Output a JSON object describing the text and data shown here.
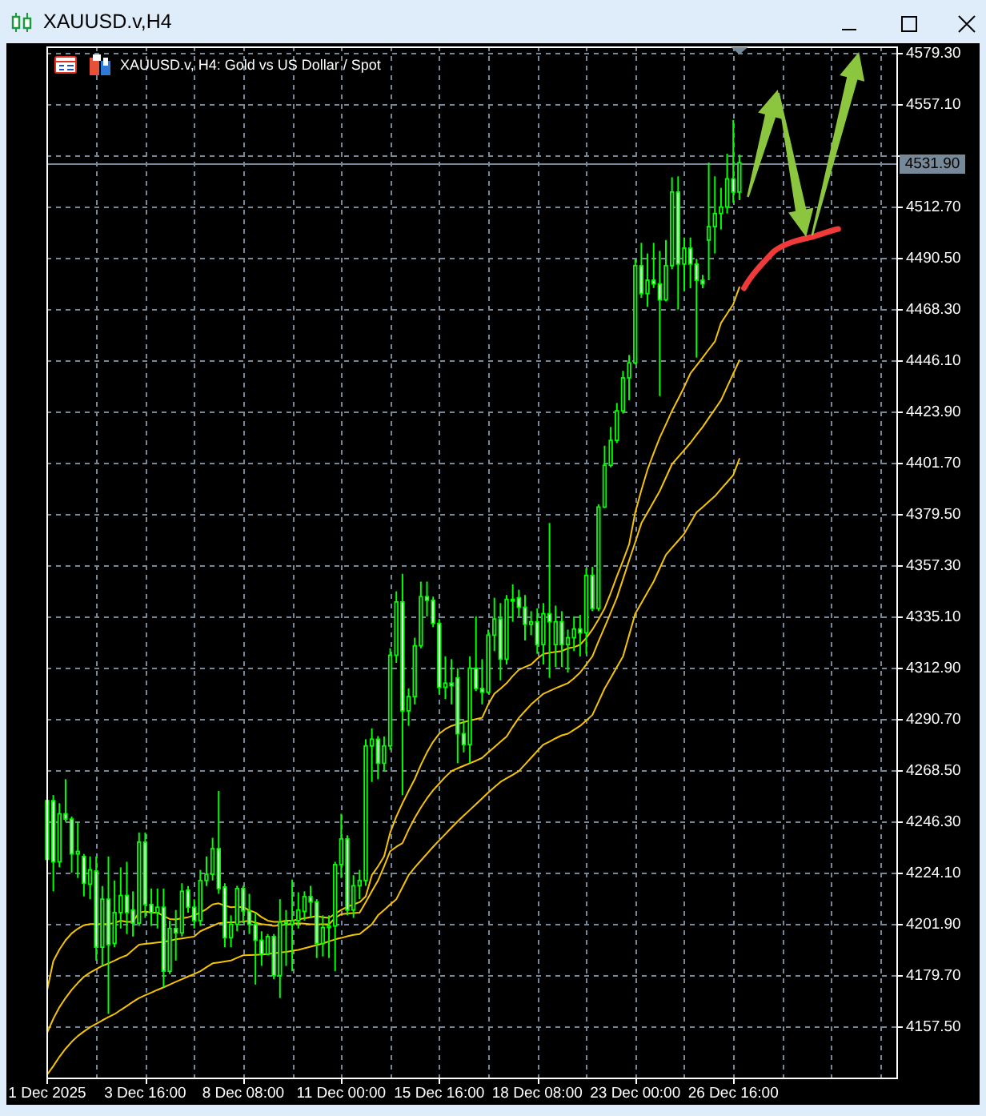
{
  "chart_data": {
    "type": "candlestick",
    "title": "XAUUSD.v,H4",
    "subtitle": "XAUUSD.v, H4: Gold vs US Dollar / Spot",
    "color": "#00ff00",
    "categories": [
      "1 Dec 2025",
      null,
      null,
      null,
      null,
      null,
      null,
      null,
      null,
      null,
      null,
      null,
      null,
      null,
      null,
      null,
      "3 Dec 16:00",
      null,
      null,
      null,
      null,
      null,
      null,
      null,
      null,
      null,
      null,
      null,
      null,
      null,
      null,
      null,
      "8 Dec 08:00",
      null,
      null,
      null,
      null,
      null,
      null,
      null,
      null,
      null,
      null,
      null,
      null,
      null,
      null,
      null,
      "11 Dec 00:00",
      null,
      null,
      null,
      null,
      null,
      null,
      null,
      null,
      null,
      null,
      null,
      null,
      null,
      null,
      null,
      "15 Dec 16:00",
      null,
      null,
      null,
      null,
      null,
      null,
      null,
      null,
      null,
      null,
      null,
      null,
      null,
      null,
      null,
      "18 Dec 08:00",
      null,
      null,
      null,
      null,
      null,
      null,
      null,
      null,
      null,
      null,
      null,
      null,
      null,
      null,
      null,
      "23 Dec 00:00",
      null,
      null,
      null,
      null,
      null,
      null,
      null,
      null,
      null,
      null,
      null,
      null,
      null,
      null,
      null,
      "26 Dec 16:00",
      null,
      null,
      null,
      null,
      null,
      null,
      null,
      null,
      null,
      null,
      null,
      null,
      null,
      null,
      null,
      null,
      null,
      null,
      null,
      null,
      null,
      null,
      null,
      null,
      null,
      null
    ],
    "ohlc": [
      [
        4230.1,
        4257.9,
        4227.8,
        4255.5
      ],
      [
        4255.5,
        4257.9,
        4216.2,
        4229
      ],
      [
        4229,
        4254.4,
        4226.6,
        4249.8
      ],
      [
        4249.8,
        4264.8,
        4246.3,
        4247.5
      ],
      [
        4247.5,
        4248.6,
        4224.3,
        4232.4
      ],
      [
        4232.4,
        4246.3,
        4222,
        4233.5
      ],
      [
        4231.3,
        4232.4,
        4214,
        4219.7
      ],
      [
        4219.3,
        4231.3,
        4212.8,
        4225.5
      ],
      [
        4225,
        4231.3,
        4186.2,
        4192
      ],
      [
        4192,
        4218.5,
        4183.9,
        4212.8
      ],
      [
        4212.8,
        4231.3,
        4163.1,
        4193.1
      ],
      [
        4193.6,
        4220.9,
        4192,
        4207
      ],
      [
        4207,
        4226.6,
        4200.1,
        4214.4
      ],
      [
        4214.4,
        4229,
        4197.7,
        4207
      ],
      [
        4208.1,
        4216.2,
        4196.6,
        4202.4
      ],
      [
        4202.4,
        4241.7,
        4201.2,
        4237.5
      ],
      [
        4237.5,
        4241.7,
        4204.7,
        4210.5
      ],
      [
        4210.5,
        4217.4,
        4201.2,
        4207
      ],
      [
        4207,
        4217.4,
        4200.1,
        4209.3
      ],
      [
        4209.3,
        4217.4,
        4174.6,
        4181.6
      ],
      [
        4181.6,
        4203.5,
        4180.4,
        4200.1
      ],
      [
        4200.1,
        4208.1,
        4186.2,
        4198.2
      ],
      [
        4198.2,
        4219.7,
        4196.6,
        4216.2
      ],
      [
        4216.7,
        4218.5,
        4207,
        4209.3
      ],
      [
        4209.3,
        4212.8,
        4200.1,
        4203.5
      ],
      [
        4203.5,
        4225.5,
        4201.2,
        4220.9
      ],
      [
        4220.9,
        4231.3,
        4218.5,
        4223.6
      ],
      [
        4223.6,
        4239.4,
        4220.9,
        4234.7
      ],
      [
        4234.7,
        4259.7,
        4215.1,
        4217.4
      ],
      [
        4218.1,
        4219.7,
        4192,
        4196.1
      ],
      [
        4196.1,
        4205.8,
        4192,
        4201.9
      ],
      [
        4201.9,
        4218.6,
        4198.9,
        4217.4
      ],
      [
        4217.4,
        4218.6,
        4202.4,
        4207.7
      ],
      [
        4207.7,
        4215.1,
        4197.7,
        4201.9
      ],
      [
        4201.9,
        4207,
        4175.8,
        4195
      ],
      [
        4195,
        4198.9,
        4183.9,
        4189
      ],
      [
        4189,
        4197.7,
        4188.5,
        4196.6
      ],
      [
        4196.6,
        4197.7,
        4178.1,
        4179.7
      ],
      [
        4179.7,
        4212.8,
        4170,
        4202.8
      ],
      [
        4202.8,
        4208.1,
        4183.9,
        4201.9
      ],
      [
        4201.9,
        4221.3,
        4181.6,
        4203.5
      ],
      [
        4203.5,
        4215.8,
        4200.1,
        4208.1
      ],
      [
        4207.5,
        4216.2,
        4203.5,
        4213.9
      ],
      [
        4213.9,
        4218.6,
        4204.7,
        4211.6
      ],
      [
        4211.6,
        4212.8,
        4187.3,
        4193.6
      ],
      [
        4193.6,
        4205.8,
        4188,
        4200.5
      ],
      [
        4200.5,
        4205.8,
        4187.3,
        4201.2
      ],
      [
        4201.2,
        4229,
        4181.6,
        4227.8
      ],
      [
        4227.8,
        4249.8,
        4222,
        4238.9
      ],
      [
        4238.9,
        4240.5,
        4205.8,
        4208.1
      ],
      [
        4208.1,
        4223.2,
        4204.7,
        4218.6
      ],
      [
        4218.6,
        4225.5,
        4212.8,
        4220.9
      ],
      [
        4220.9,
        4282.1,
        4218.6,
        4279.2
      ],
      [
        4279.2,
        4286.8,
        4263.6,
        4282.1
      ],
      [
        4282.1,
        4283.5,
        4264.8,
        4271.7
      ],
      [
        4271.7,
        4283.3,
        4268.3,
        4279.2
      ],
      [
        4279.2,
        4321.5,
        4277.5,
        4318.5
      ],
      [
        4318.5,
        4346.2,
        4315.2,
        4341.6
      ],
      [
        4341.6,
        4353.8,
        4257.9,
        4294.4
      ],
      [
        4294.4,
        4304.1,
        4287.9,
        4300.6
      ],
      [
        4300.6,
        4326.1,
        4297.2,
        4322.6
      ],
      [
        4322.6,
        4350.4,
        4321.5,
        4343.9
      ],
      [
        4343.9,
        4350.4,
        4335.3,
        4342.3
      ],
      [
        4342.3,
        4343.9,
        4330.7,
        4332.3
      ],
      [
        4332.3,
        4334.2,
        4301.8,
        4304.6
      ],
      [
        4304.6,
        4318,
        4299.5,
        4306.4
      ],
      [
        4306.4,
        4316.8,
        4297.2,
        4305.3
      ],
      [
        4308.7,
        4312.9,
        4271.7,
        4284.5
      ],
      [
        4284.5,
        4290.2,
        4276.4,
        4279.8
      ],
      [
        4279.8,
        4318,
        4271.7,
        4312.9
      ],
      [
        4312.9,
        4335.3,
        4303,
        4304.1
      ],
      [
        4304.1,
        4316.8,
        4297.2,
        4302.5
      ],
      [
        4302.5,
        4329.6,
        4301.8,
        4327.2
      ],
      [
        4327.2,
        4343.4,
        4320.3,
        4334.2
      ],
      [
        4334.2,
        4341.1,
        4307.6,
        4316.8
      ],
      [
        4316.8,
        4344.6,
        4314.5,
        4342.7
      ],
      [
        4342.7,
        4349.2,
        4333,
        4342
      ],
      [
        4343.4,
        4346.9,
        4335.3,
        4339.3
      ],
      [
        4339.3,
        4344.6,
        4324.9,
        4331.9
      ],
      [
        4331.9,
        4337.6,
        4327.2,
        4333
      ],
      [
        4333,
        4338.8,
        4319.1,
        4323.1
      ],
      [
        4323.1,
        4341.1,
        4314.5,
        4336.5
      ],
      [
        4336.5,
        4375.8,
        4308.7,
        4333
      ],
      [
        4323.1,
        4340,
        4313.4,
        4333
      ],
      [
        4333,
        4337.6,
        4313.4,
        4323.1
      ],
      [
        4323.1,
        4329.6,
        4311,
        4326.1
      ],
      [
        4326.1,
        4335.3,
        4320.3,
        4329.9
      ],
      [
        4329.9,
        4336,
        4318,
        4328.2
      ],
      [
        4328.2,
        4356.1,
        4319.1,
        4353.1
      ],
      [
        4353.1,
        4356.8,
        4337.6,
        4338.8
      ],
      [
        4338.8,
        4383.9,
        4337.6,
        4382.7
      ],
      [
        4382.7,
        4409.3,
        4382.3,
        4400.8
      ],
      [
        4400.8,
        4417.4,
        4399.9,
        4411.6
      ],
      [
        4411.6,
        4427.8,
        4410.5,
        4424.4
      ],
      [
        4424.4,
        4441.7,
        4423.2,
        4438.7
      ],
      [
        4438.7,
        4448.6,
        4429,
        4445.2
      ],
      [
        4445.2,
        4490.3,
        4444.5,
        4487.3
      ],
      [
        4487.3,
        4497.2,
        4473.4,
        4475.2
      ],
      [
        4475.2,
        4492.6,
        4469.5,
        4481
      ],
      [
        4481,
        4497.2,
        4477.6,
        4479.4
      ],
      [
        4479.4,
        4493.7,
        4430.8,
        4472.5
      ],
      [
        4472.5,
        4498.4,
        4471.8,
        4487.3
      ],
      [
        4487.3,
        4525.6,
        4485.7,
        4519.2
      ],
      [
        4519.2,
        4526,
        4468.3,
        4488
      ],
      [
        4488,
        4499.5,
        4476.4,
        4494.9
      ],
      [
        4494.9,
        4499.5,
        4477.5,
        4488
      ],
      [
        4488,
        4490.3,
        4447.5,
        4481
      ],
      [
        4481,
        4483.3,
        4477.5,
        4479.4
      ],
      [
        4498.4,
        4532,
        4481,
        4504.2
      ],
      [
        4504.2,
        4526,
        4492.6,
        4509.9
      ],
      [
        4509.9,
        4521,
        4503,
        4512.7
      ],
      [
        4512.7,
        4535.8,
        4509.9,
        4524.9
      ],
      [
        4524.9,
        4550.4,
        4514.5,
        4519.2
      ],
      [
        4519.2,
        4535.4,
        4515.7,
        4531.9
      ],
      null,
      null,
      null,
      null,
      null,
      null,
      null,
      null,
      null,
      null,
      null,
      null,
      null,
      null,
      null,
      null,
      null,
      null,
      null,
      null,
      null,
      null,
      null,
      null,
      null
    ],
    "series": [
      {
        "type": "line",
        "color": "#f5c400",
        "values": [
          4173.5,
          4186,
          4191,
          4195,
          4198,
          4200,
          4201.5,
          4202,
          4202,
          4202,
          4202,
          4202.5,
          4203.5,
          4203,
          4203,
          4207,
          4207.5,
          4207,
          4207,
          4205.5,
          4204.2,
          4204,
          4204.5,
          4205,
          4205.8,
          4207,
          4208.5,
          4210.5,
          4211,
          4210,
          4209.3,
          4209.5,
          4209.3,
          4208,
          4207,
          4205,
          4203.5,
          4203,
          4203,
          4203.5,
          4203.5,
          4204,
          4204.5,
          4205,
          4205.5,
          4205,
          4204.7,
          4206.5,
          4208.1,
          4209.5,
          4210.5,
          4211.5,
          4214,
          4223.2,
          4227,
          4231.3,
          4241.7,
          4248.6,
          4254.4,
          4259.7,
          4264.8,
          4271,
          4276.4,
          4281,
          4284.5,
          4286.5,
          4287.9,
          4288.7,
          4289.5,
          4290.2,
          4290.8,
          4291.4,
          4297.2,
          4301.8,
          4304,
          4306.4,
          4309.5,
          4312.2,
          4313.4,
          4314.5,
          4317,
          4319.1,
          4319.5,
          4320,
          4320.3,
          4321.5,
          4322,
          4323.1,
          4326,
          4329.6,
          4334,
          4338.8,
          4345.5,
          4352.7,
          4359.5,
          4366.6,
          4380.4,
          4390,
          4398.9,
          4406,
          4412.8,
          4418.5,
          4424.4,
          4429.5,
          4434.8,
          4440.6,
          4444,
          4447.5,
          4451,
          4454.4,
          4462.5,
          4466.5,
          4470.6,
          4478,
          null,
          null,
          null,
          null,
          null,
          null,
          null,
          null,
          null,
          null,
          null,
          null,
          null,
          null,
          null,
          null,
          null,
          null,
          null,
          null,
          null,
          null,
          null,
          null,
          null
        ]
      },
      {
        "type": "line",
        "color": "#f5c400",
        "values": [
          4155,
          4161,
          4166,
          4170,
          4173.5,
          4176.5,
          4179.2,
          4181,
          4182.5,
          4183.9,
          4185,
          4186.2,
          4187.5,
          4188.5,
          4190.8,
          4193.1,
          4193.4,
          4193.7,
          4194,
          4194.3,
          4194.8,
          4195.4,
          4195.8,
          4196.2,
          4196.6,
          4198.9,
          4200.1,
          4201.2,
          4202.4,
          4202.6,
          4202.8,
          4202.8,
          4203.1,
          4203.5,
          4202.6,
          4202,
          4201.7,
          4201.2,
          4201.5,
          4201.8,
          4202.2,
          4202.4,
          4202.2,
          4201.9,
          4201.9,
          4201.9,
          4201.9,
          4204.7,
          4206.3,
          4206.6,
          4206.8,
          4207,
          4211.5,
          4216.2,
          4220.8,
          4227,
          4233.6,
          4235.5,
          4237.1,
          4242.9,
          4248,
          4252.5,
          4256.5,
          4260,
          4262.9,
          4265.8,
          4268.3,
          4269.5,
          4270.6,
          4271.7,
          4272.8,
          4274,
          4276.4,
          4278.7,
          4281,
          4283.3,
          4287.5,
          4291.4,
          4294.3,
          4297.2,
          4299.5,
          4301.8,
          4303,
          4304.2,
          4305.3,
          4306.4,
          4308.5,
          4311,
          4314.5,
          4318,
          4324.5,
          4330.7,
          4337,
          4343.4,
          4351.5,
          4359.6,
          4367.5,
          4375.7,
          4380.3,
          4385,
          4389.7,
          4395.5,
          4401.3,
          4404.4,
          4407.4,
          4410.5,
          4414,
          4417.4,
          4421.3,
          4425.1,
          4429,
          4434.8,
          4440.5,
          4446.3,
          null,
          null,
          null,
          null,
          null,
          null,
          null,
          null,
          null,
          null,
          null,
          null,
          null,
          null,
          null,
          null,
          null,
          null,
          null,
          null,
          null,
          null,
          null,
          null,
          null
        ]
      },
      {
        "type": "line",
        "color": "#f5c400",
        "values": [
          4136.8,
          4140.5,
          4144.5,
          4148,
          4151,
          4153.5,
          4155.5,
          4157.3,
          4158.8,
          4160.3,
          4161.7,
          4163,
          4164.8,
          4166.5,
          4168.3,
          4170,
          4171.2,
          4172.3,
          4173.5,
          4174.6,
          4175.8,
          4177,
          4178.1,
          4179.3,
          4180.4,
          4181.6,
          4183.3,
          4185,
          4185.4,
          4185.8,
          4186.2,
          4187.4,
          4188.5,
          4188.6,
          4188.7,
          4188.8,
          4189,
          4189.4,
          4189.7,
          4190,
          4190.4,
          4190.8,
          4191.5,
          4192.2,
          4192.9,
          4193.6,
          4194.5,
          4195.4,
          4196,
          4196.7,
          4197.3,
          4197.7,
          4199.8,
          4201.9,
          4205.8,
          4208.1,
          4210.5,
          4212.8,
          4218,
          4223.2,
          4226.5,
          4229.5,
          4232.5,
          4235.5,
          4238.3,
          4241,
          4243.8,
          4246.5,
          4249,
          4251.5,
          4254,
          4256.5,
          4259,
          4261.3,
          4263.6,
          4265.2,
          4266.7,
          4268.3,
          4271.2,
          4274.1,
          4277,
          4279.8,
          4281.1,
          4282.5,
          4283.8,
          4284.5,
          4286.2,
          4287.9,
          4290.2,
          4292.6,
          4298.3,
          4304.1,
          4308.7,
          4313.4,
          4318,
          4327.2,
          4336.5,
          4341.1,
          4345.8,
          4350.4,
          4356.2,
          4362,
          4365.1,
          4368.1,
          4371.2,
          4375.8,
          4380.4,
          4382.7,
          4385.1,
          4387.4,
          4390.5,
          4393.5,
          4396.6,
          4403.6,
          null,
          null,
          null,
          null,
          null,
          null,
          null,
          null,
          null,
          null,
          null,
          null,
          null,
          null,
          null,
          null,
          null,
          null,
          null,
          null,
          null,
          null,
          null,
          null,
          null
        ]
      }
    ],
    "ylim": [
      4135.5,
      4582.3
    ],
    "yticks": [
      {
        "value": 4579.3,
        "label": "4579.30"
      },
      {
        "value": 4557.1,
        "label": "4557.10"
      },
      {
        "value": 4534.9,
        "label": null
      },
      {
        "value": 4512.7,
        "label": "4512.70"
      },
      {
        "value": 4490.5,
        "label": "4490.50"
      },
      {
        "value": 4468.3,
        "label": "4468.30"
      },
      {
        "value": 4446.1,
        "label": "4446.10"
      },
      {
        "value": 4423.9,
        "label": "4423.90"
      },
      {
        "value": 4401.7,
        "label": "4401.70"
      },
      {
        "value": 4379.5,
        "label": "4379.50"
      },
      {
        "value": 4357.3,
        "label": "4357.30"
      },
      {
        "value": 4335.1,
        "label": "4335.10"
      },
      {
        "value": 4312.9,
        "label": "4312.90"
      },
      {
        "value": 4290.7,
        "label": "4290.70"
      },
      {
        "value": 4268.5,
        "label": "4268.50"
      },
      {
        "value": 4246.3,
        "label": "4246.30"
      },
      {
        "value": 4224.1,
        "label": "4224.10"
      },
      {
        "value": 4201.9,
        "label": "4201.90"
      },
      {
        "value": 4179.7,
        "label": "4179.70"
      },
      {
        "value": 4157.5,
        "label": "4157.50"
      }
    ],
    "grid": true,
    "ref_lines": [
      {
        "axis": "y",
        "value": 4531.9,
        "label": "4531.90",
        "color": "#778899"
      }
    ]
  }
}
